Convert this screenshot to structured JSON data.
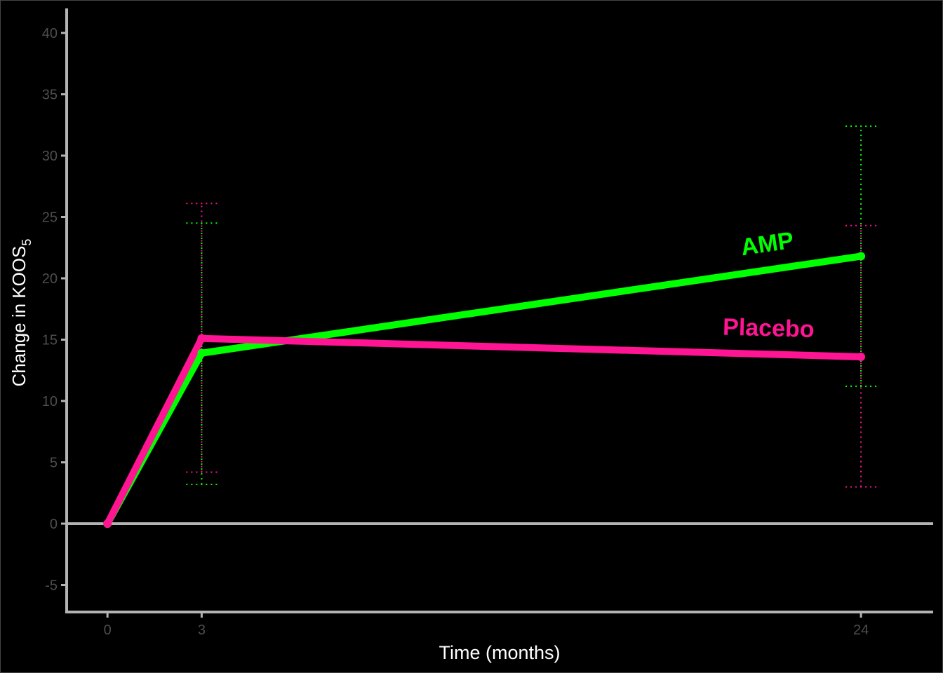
{
  "chart_data": {
    "type": "line",
    "xlabel": "Time (months)",
    "ylabel": {
      "main": "Change in KOOS",
      "subscript": "5"
    },
    "x_ticks": [
      0,
      3,
      24
    ],
    "y_ticks": [
      -5,
      0,
      5,
      10,
      15,
      20,
      25,
      30,
      35,
      40
    ],
    "xlim": [
      -1.3,
      26.3
    ],
    "ylim": [
      -7.2,
      42.0
    ],
    "reference_line_y": 0,
    "background": "#000000",
    "axis_color": "#b3b3b3",
    "tick_label_color": "#4d4d4d",
    "series": [
      {
        "name": "AMP",
        "color": "#00ff00",
        "x": [
          0,
          3,
          24
        ],
        "y": [
          0,
          13.9,
          21.8
        ],
        "ci_lower": [
          null,
          3.2,
          11.2
        ],
        "ci_upper": [
          null,
          24.5,
          32.4
        ]
      },
      {
        "name": "Placebo",
        "color": "#ff1493",
        "x": [
          0,
          3,
          24
        ],
        "y": [
          0,
          15.1,
          13.6
        ],
        "ci_lower": [
          null,
          4.2,
          3.0
        ],
        "ci_upper": [
          null,
          26.1,
          24.3
        ]
      }
    ]
  }
}
